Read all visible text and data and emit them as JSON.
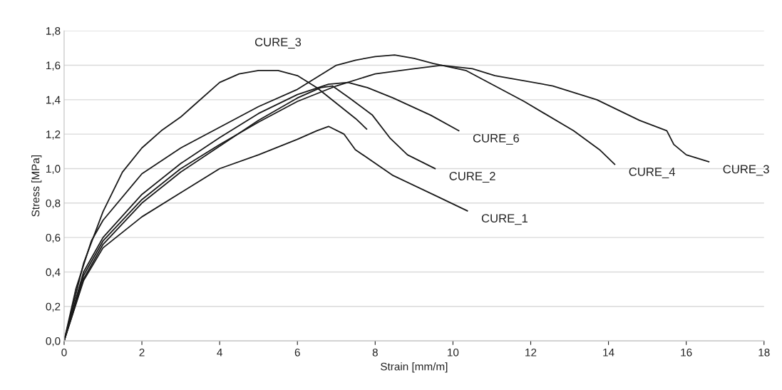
{
  "chart_data": {
    "type": "line",
    "xlabel": "Strain [mm/m]",
    "ylabel": "Stress [MPa]",
    "xlim": [
      0,
      18
    ],
    "xticks": [
      0,
      2,
      4,
      6,
      8,
      10,
      12,
      14,
      16,
      18
    ],
    "ylim": [
      0,
      1.8
    ],
    "yticks": [
      {
        "value": 0,
        "label": "0,0"
      },
      {
        "value": 0.2,
        "label": "0,2"
      },
      {
        "value": 0.4,
        "label": "0,4"
      },
      {
        "value": 0.6,
        "label": "0,6"
      },
      {
        "value": 0.8,
        "label": "0,8"
      },
      {
        "value": 1.0,
        "label": "1,0"
      },
      {
        "value": 1.2,
        "label": "1,2"
      },
      {
        "value": 1.4,
        "label": "1,4"
      },
      {
        "value": 1.6,
        "label": "1,6"
      },
      {
        "value": 1.8,
        "label": "1,8"
      }
    ],
    "grid": "y",
    "marker": "none",
    "line_style": "solid",
    "series": [
      {
        "color": "#1a1a1a",
        "x": [
          0,
          0.5,
          1,
          1.5,
          2,
          2.5,
          3,
          3.3,
          4,
          4.5,
          5,
          5.5,
          6,
          6.5,
          7,
          7.5,
          7.78
        ],
        "values": [
          0,
          0.45,
          0.75,
          0.98,
          1.12,
          1.22,
          1.3,
          1.36,
          1.5,
          1.55,
          1.57,
          1.57,
          1.54,
          1.47,
          1.38,
          1.29,
          1.23
        ]
      },
      {
        "color": "#1a1a1a",
        "x": [
          0,
          0.5,
          1,
          2,
          3,
          4,
          5,
          6,
          6.5,
          6.8,
          7.2,
          7.49,
          8.46,
          9.58,
          10.37
        ],
        "values": [
          0,
          0.35,
          0.54,
          0.72,
          0.86,
          1.0,
          1.08,
          1.17,
          1.22,
          1.245,
          1.2,
          1.11,
          0.96,
          0.84,
          0.755
        ]
      },
      {
        "color": "#1a1a1a",
        "x": [
          0,
          0.5,
          1,
          2,
          3,
          4,
          5,
          6,
          6.6,
          6.9,
          7.34,
          7.93,
          8.39,
          8.83,
          9.54
        ],
        "values": [
          0,
          0.36,
          0.56,
          0.8,
          0.98,
          1.13,
          1.28,
          1.41,
          1.47,
          1.48,
          1.41,
          1.31,
          1.175,
          1.08,
          1.0
        ]
      },
      {
        "color": "#1a1a1a",
        "x": [
          0,
          0.5,
          1,
          2,
          3,
          4,
          5,
          6,
          6.8,
          7.3,
          7.8,
          8.46,
          9.43,
          10.15
        ],
        "values": [
          0,
          0.4,
          0.6,
          0.85,
          1.03,
          1.18,
          1.32,
          1.43,
          1.49,
          1.5,
          1.47,
          1.41,
          1.31,
          1.22
        ]
      },
      {
        "color": "#1a1a1a",
        "x": [
          0,
          0.3,
          0.7,
          1,
          2,
          3,
          4,
          5,
          6,
          7,
          7.5,
          8,
          8.5,
          9,
          9.5,
          10.33,
          11.83,
          13.1,
          13.77,
          14.16
        ],
        "values": [
          0,
          0.3,
          0.58,
          0.7,
          0.97,
          1.12,
          1.24,
          1.36,
          1.46,
          1.6,
          1.63,
          1.65,
          1.66,
          1.64,
          1.61,
          1.57,
          1.39,
          1.22,
          1.11,
          1.025
        ]
      },
      {
        "color": "#1a1a1a",
        "x": [
          0,
          0.5,
          1,
          2,
          3,
          4,
          5,
          6,
          7,
          8,
          9,
          9.7,
          10.5,
          11.08,
          12.57,
          13.7,
          14.8,
          15.5,
          15.68,
          16.0,
          16.58
        ],
        "values": [
          0,
          0.38,
          0.58,
          0.82,
          1.0,
          1.14,
          1.27,
          1.39,
          1.48,
          1.55,
          1.58,
          1.6,
          1.58,
          1.54,
          1.48,
          1.4,
          1.28,
          1.22,
          1.14,
          1.08,
          1.04
        ]
      }
    ],
    "annotations": [
      {
        "text": "CURE_3",
        "x": 5.5,
        "y": 1.57
      },
      {
        "text": "CURE_6",
        "x": 10.15,
        "y": 1.22
      },
      {
        "text": "CURE_2",
        "x": 9.54,
        "y": 1.0
      },
      {
        "text": "CURE_1",
        "x": 10.37,
        "y": 0.755
      },
      {
        "text": "CURE_4",
        "x": 14.16,
        "y": 1.025
      },
      {
        "text": "CURE_3",
        "x": 16.58,
        "y": 1.04
      }
    ]
  }
}
